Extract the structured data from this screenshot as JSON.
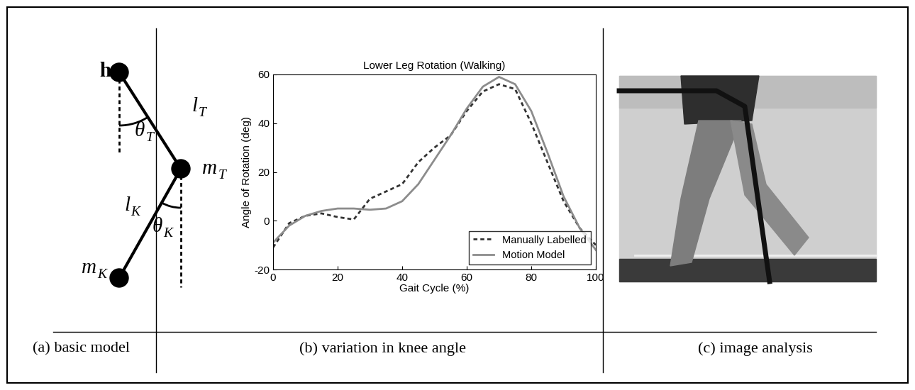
{
  "diagram": {
    "caption": "(a) basic model",
    "labels": [
      {
        "text": "h"
      },
      {
        "text": "l",
        "subscript": "T"
      },
      {
        "text": "θ",
        "subscript": "T"
      },
      {
        "text": "m",
        "subscript": "T"
      },
      {
        "text": "l",
        "subscript": "K"
      },
      {
        "text": "θ",
        "subscript": "K"
      },
      {
        "text": "m",
        "subscript": "K"
      }
    ]
  },
  "chart_data": {
    "type": "line",
    "title": "Lower Leg Rotation (Walking)",
    "caption": "(b) variation in knee angle",
    "x_label": "Gait Cycle (%)",
    "y_label": "Angle of Rotation (deg)",
    "x": [
      0,
      5,
      10,
      15,
      20,
      25,
      30,
      35,
      40,
      45,
      50,
      55,
      60,
      65,
      70,
      75,
      80,
      85,
      90,
      95,
      100
    ],
    "series": [
      {
        "name": "Manually Labelled",
        "color": "#333333",
        "line_style": "dotted",
        "values": [
          -11,
          -1,
          2,
          3,
          1.5,
          0.5,
          9,
          12,
          15,
          24,
          30,
          35,
          45,
          53,
          56,
          54,
          40,
          24,
          8,
          -3,
          -10
        ]
      },
      {
        "name": "Motion Model",
        "color": "#8c8c8c",
        "line_style": "solid",
        "values": [
          -9,
          -2,
          2,
          4,
          5,
          5,
          4.5,
          5,
          8,
          15,
          25,
          35,
          46,
          55,
          59,
          56,
          45,
          28,
          10,
          -3,
          -12
        ]
      }
    ],
    "xlim": [
      0,
      100
    ],
    "ylim": [
      -20,
      60
    ],
    "xticks": [
      0,
      20,
      40,
      60,
      80,
      100
    ],
    "yticks": [
      -20,
      0,
      20,
      40,
      60
    ],
    "legend": "lower right"
  },
  "image": {
    "caption": "(c) image analysis"
  }
}
